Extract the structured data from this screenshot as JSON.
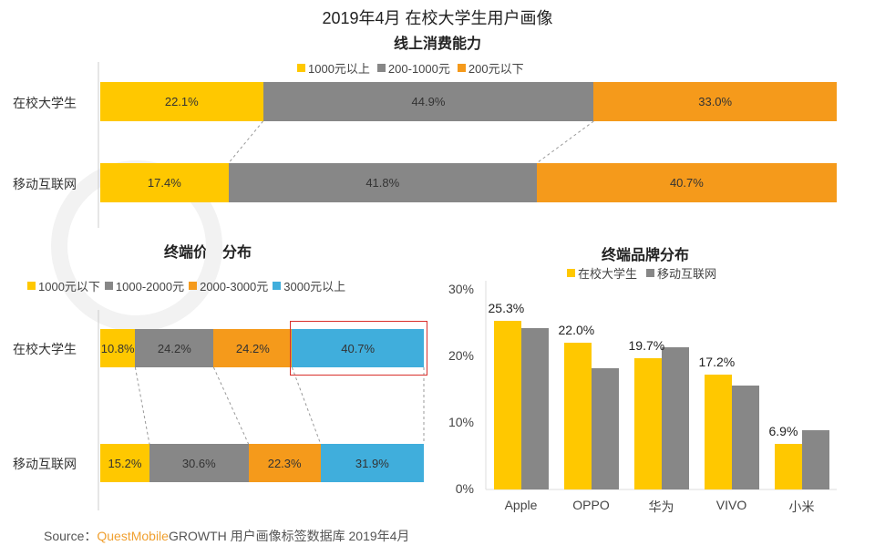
{
  "title": "2019年4月 在校大学生用户画像",
  "watermark": "QUESTMOBILE",
  "colors": {
    "yellow": "#FFC800",
    "gray": "#878787",
    "orange": "#F59A1B",
    "blue": "#40AEDC",
    "highlight": "#D9302C"
  },
  "chart_data": [
    {
      "type": "bar",
      "orientation": "horizontal",
      "stacked": true,
      "title": "线上消费能力",
      "categories": [
        "在校大学生",
        "移动互联网"
      ],
      "series": [
        {
          "name": "1000元以上",
          "values": [
            22.1,
            17.4
          ]
        },
        {
          "name": "200-1000元",
          "values": [
            44.9,
            41.8
          ]
        },
        {
          "name": "200元以下",
          "values": [
            33.0,
            40.7
          ]
        }
      ],
      "labels": [
        [
          "22.1%",
          "44.9%",
          "33.0%"
        ],
        [
          "17.4%",
          "41.8%",
          "40.7%"
        ]
      ],
      "legend": "top"
    },
    {
      "type": "bar",
      "orientation": "horizontal",
      "stacked": true,
      "title": "终端价格分布",
      "categories": [
        "在校大学生",
        "移动互联网"
      ],
      "series": [
        {
          "name": "1000元以下",
          "values": [
            10.8,
            15.2
          ]
        },
        {
          "name": "1000-2000元",
          "values": [
            24.2,
            30.6
          ]
        },
        {
          "name": "2000-3000元",
          "values": [
            24.2,
            22.3
          ]
        },
        {
          "name": "3000元以上",
          "values": [
            40.7,
            31.9
          ]
        }
      ],
      "labels": [
        [
          "10.8%",
          "24.2%",
          "24.2%",
          "40.7%"
        ],
        [
          "15.2%",
          "30.6%",
          "22.3%",
          "31.9%"
        ]
      ],
      "highlight": "在校大学生 3000元以上",
      "legend": "top"
    },
    {
      "type": "bar",
      "title": "终端品牌分布",
      "categories": [
        "Apple",
        "OPPO",
        "华为",
        "VIVO",
        "小米"
      ],
      "series": [
        {
          "name": "在校大学生",
          "values": [
            25.3,
            22.0,
            19.7,
            17.2,
            6.9
          ]
        },
        {
          "name": "移动互联网",
          "values": [
            24.2,
            18.2,
            21.4,
            15.6,
            8.9
          ]
        }
      ],
      "data_labels": [
        "25.3%",
        "22.0%",
        "19.7%",
        "17.2%",
        "6.9%"
      ],
      "ylim": [
        0,
        30
      ],
      "yticks": [
        "0%",
        "10%",
        "20%",
        "30%"
      ],
      "legend": "top",
      "grid": false
    }
  ],
  "source": {
    "prefix": "Source：",
    "brand": "QuestMobile",
    "rest": "GROWTH 用户画像标签数据库  2019年4月"
  }
}
